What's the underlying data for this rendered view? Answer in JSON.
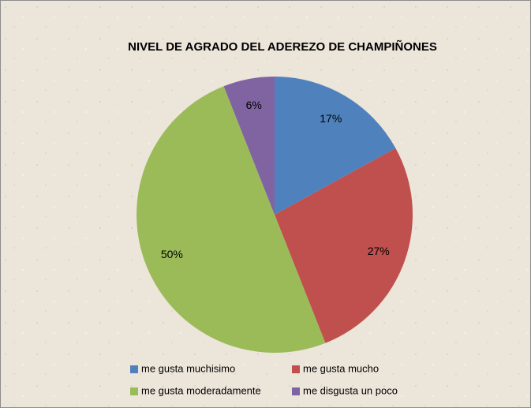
{
  "chart_data": {
    "type": "pie",
    "title": "NIVEL DE AGRADO DEL ADEREZO DE CHAMPIÑONES",
    "categories": [
      "me gusta muchisimo",
      "me gusta mucho",
      "me gusta moderadamente",
      "me disgusta un poco"
    ],
    "values": [
      17,
      27,
      50,
      6
    ],
    "value_labels": [
      "17%",
      "27%",
      "50%",
      "6%"
    ],
    "colors": [
      "#4f81bd",
      "#c0504d",
      "#9bbb59",
      "#8064a2"
    ],
    "legend": "bottom"
  }
}
